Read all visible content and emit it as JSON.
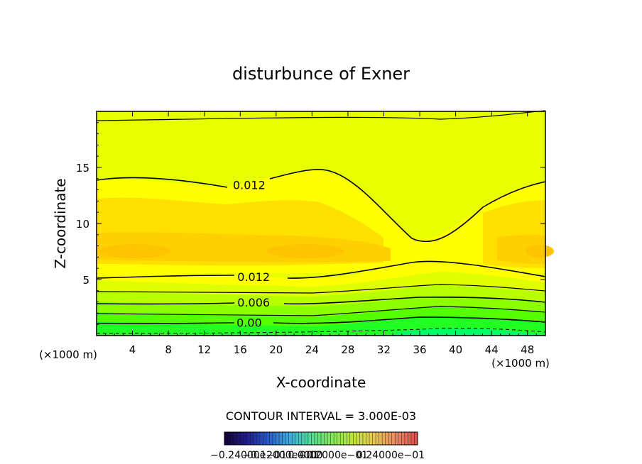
{
  "chart_data": {
    "type": "contour",
    "title": "disturbunce of Exner",
    "xlabel": "X-coordinate",
    "ylabel": "Z-coordinate",
    "x_unit": "(×1000 m)",
    "x_unit_right": "(×1000 m)",
    "xlim": [
      0,
      50
    ],
    "ylim": [
      0,
      20
    ],
    "x_ticks": [
      4,
      8,
      12,
      16,
      20,
      24,
      28,
      32,
      36,
      40,
      44,
      48
    ],
    "y_ticks": [
      5,
      10,
      15
    ],
    "contour_interval_text": "CONTOUR INTERVAL = 3.000E-03",
    "contour_labels": [
      {
        "text": "0.012",
        "x": 17,
        "y": 13.4
      },
      {
        "text": "0.012",
        "x": 17.5,
        "y": 5.2
      },
      {
        "text": "0.006",
        "x": 17.5,
        "y": 2.9
      },
      {
        "text": "0.00",
        "x": 17,
        "y": 1.1
      }
    ],
    "colorbar_labels_text": "−0.24000e−01 ... −0.12000e−01 ... 0.0000 ... 0.12000e−01 ... 0.24000e−01 (overlapping)",
    "colorbar_range": [
      -0.024,
      0.024
    ],
    "colorbar_label_fragments": [
      "−0.24000e−01",
      "−0.12000e−01",
      "0.0000",
      "0.12000e−01",
      "0.24000e−01"
    ],
    "colors": {
      "high": "#f5c400",
      "mid_high": "#ffe600",
      "mid": "#ffff00",
      "mid_low": "#d4ff00",
      "low": "#8cff00",
      "lowest": "#00ff55",
      "line": "#000000"
    }
  }
}
